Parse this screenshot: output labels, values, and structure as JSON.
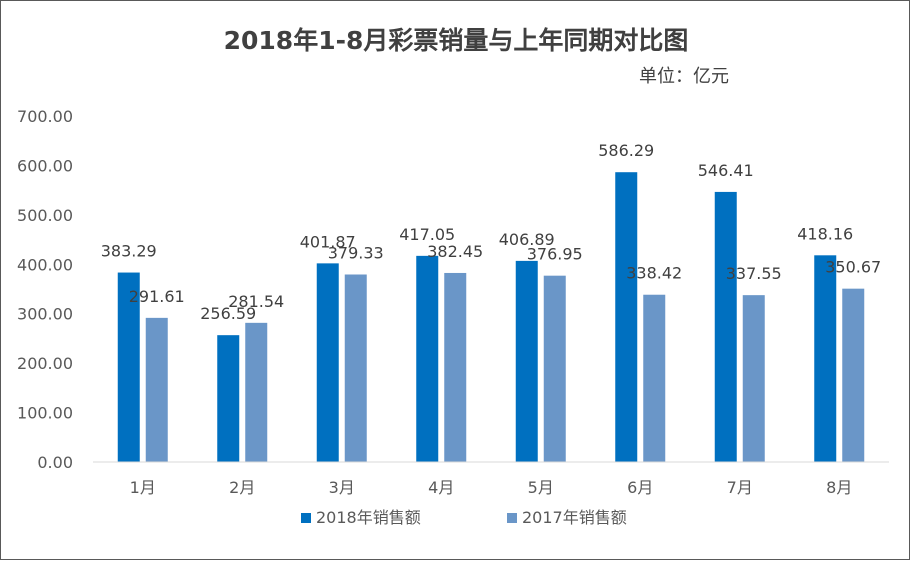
{
  "chart_data": {
    "type": "bar",
    "title": "2018年1-8月彩票销量与上年同期对比图",
    "unit": "单位：亿元",
    "categories": [
      "1月",
      "2月",
      "3月",
      "4月",
      "5月",
      "6月",
      "7月",
      "8月"
    ],
    "series": [
      {
        "name": "2018年销售额",
        "color": "#0070C0",
        "values": [
          383.29,
          256.59,
          401.87,
          417.05,
          406.89,
          586.29,
          546.41,
          418.16
        ]
      },
      {
        "name": "2017年销售额",
        "color": "#6A96C8",
        "values": [
          291.61,
          281.54,
          379.33,
          382.45,
          376.95,
          338.42,
          337.55,
          350.67
        ]
      }
    ],
    "ylim": [
      0,
      700
    ],
    "yticks": [
      "0.00",
      "100.00",
      "200.00",
      "300.00",
      "400.00",
      "500.00",
      "600.00",
      "700.00"
    ],
    "grid": false,
    "legend_position": "bottom"
  }
}
